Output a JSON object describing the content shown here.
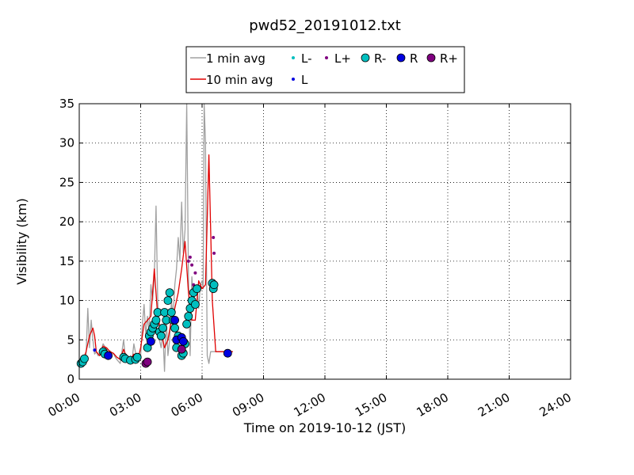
{
  "chart_data": {
    "type": "line",
    "title": "pwd52_20191012.txt",
    "xlabel": "Time on 2019-10-12 (JST)",
    "ylabel": "Visibility (km)",
    "xlim": [
      "00:00",
      "24:00"
    ],
    "ylim": [
      0,
      35
    ],
    "grid": true,
    "legend_placement": "top",
    "x_ticks": [
      "00:00",
      "03:00",
      "06:00",
      "09:00",
      "12:00",
      "15:00",
      "18:00",
      "21:00",
      "24:00"
    ],
    "y_ticks": [
      "0",
      "5",
      "10",
      "15",
      "20",
      "25",
      "30",
      "35"
    ],
    "legend": {
      "one_min": "1 min avg",
      "ten_min": "10 min avg",
      "L_minus": "L-",
      "L": "L",
      "L_plus": "L+",
      "R_minus": "R-",
      "R": "R",
      "R_plus": "R+"
    },
    "colors": {
      "one_min": "#a0a0a0",
      "ten_min": "#e00000",
      "L_minus": "#00bfbf",
      "L": "#0000e0",
      "L_plus": "#800080",
      "R_minus": "#00bfbf",
      "R": "#0000e0",
      "R_plus": "#800080"
    },
    "series": [
      {
        "name": "1 min avg",
        "x": [
          "00:00",
          "00:10",
          "00:20",
          "00:25",
          "00:30",
          "00:35",
          "00:40",
          "00:45",
          "00:50",
          "00:55",
          "01:00",
          "01:05",
          "01:10",
          "01:20",
          "01:30",
          "01:40",
          "01:50",
          "02:00",
          "02:10",
          "02:15",
          "02:20",
          "02:25",
          "02:30",
          "02:35",
          "02:40",
          "02:50",
          "03:00",
          "03:05",
          "03:10",
          "03:15",
          "03:20",
          "03:25",
          "03:30",
          "03:35",
          "03:40",
          "03:45",
          "03:50",
          "03:55",
          "04:00",
          "04:05",
          "04:10",
          "04:15",
          "04:20",
          "04:25",
          "04:30",
          "04:35",
          "04:40",
          "04:45",
          "04:50",
          "04:55",
          "05:00",
          "05:05",
          "05:10",
          "05:15",
          "05:20",
          "05:25",
          "05:30",
          "05:35",
          "05:40",
          "05:45",
          "05:50",
          "05:55",
          "06:00",
          "06:03",
          "06:06",
          "06:10",
          "06:15",
          "06:20",
          "06:25",
          "06:30",
          "06:35",
          "06:40",
          "06:45",
          "06:50",
          "06:55",
          "07:00",
          "07:05",
          "07:10",
          "07:15",
          "07:20",
          "07:25",
          "07:30"
        ],
        "values": [
          2.0,
          2.2,
          3.0,
          9.0,
          4.0,
          7.5,
          5.0,
          3.2,
          3.5,
          3.0,
          3.0,
          3.8,
          4.5,
          3.8,
          3.6,
          3.2,
          2.5,
          2.0,
          5.0,
          2.8,
          2.5,
          2.4,
          3.0,
          2.5,
          4.5,
          2.2,
          3.0,
          7.0,
          9.5,
          5.5,
          8.0,
          6.0,
          12.0,
          10.0,
          13.0,
          22.0,
          10.0,
          5.0,
          4.0,
          6.0,
          1.0,
          8.0,
          3.0,
          5.0,
          10.0,
          8.0,
          12.0,
          14.0,
          18.0,
          15.0,
          22.5,
          16.0,
          19.0,
          35.0,
          13.0,
          3.0,
          13.0,
          10.0,
          11.0,
          12.0,
          9.0,
          12.0,
          12.5,
          11.5,
          35.0,
          30.0,
          3.0,
          2.0,
          3.5,
          3.5,
          3.5,
          3.5,
          3.5,
          3.5,
          3.5,
          3.5,
          3.5,
          3.5,
          3.5,
          3.5,
          3.5,
          3.5
        ]
      },
      {
        "name": "10 min avg",
        "x": [
          "00:00",
          "00:10",
          "00:20",
          "00:30",
          "00:40",
          "00:45",
          "00:50",
          "01:00",
          "01:10",
          "01:20",
          "01:30",
          "01:40",
          "01:50",
          "02:00",
          "02:10",
          "02:20",
          "02:30",
          "02:40",
          "02:50",
          "03:00",
          "03:10",
          "03:20",
          "03:30",
          "03:40",
          "03:50",
          "04:00",
          "04:10",
          "04:20",
          "04:30",
          "04:40",
          "04:50",
          "05:00",
          "05:10",
          "05:20",
          "05:30",
          "05:40",
          "05:50",
          "06:00",
          "06:10",
          "06:20",
          "06:30",
          "06:40",
          "06:50",
          "07:00",
          "07:05",
          "07:10",
          "07:20",
          "07:30"
        ],
        "values": [
          2.0,
          2.3,
          3.5,
          5.5,
          6.5,
          5.5,
          3.5,
          3.0,
          4.2,
          4.0,
          3.5,
          3.3,
          2.8,
          2.5,
          3.8,
          2.6,
          2.5,
          3.2,
          2.2,
          4.0,
          7.0,
          7.5,
          8.0,
          14.0,
          8.0,
          6.0,
          4.0,
          5.0,
          7.5,
          9.0,
          11.0,
          14.0,
          17.5,
          11.0,
          7.5,
          7.5,
          12.5,
          11.5,
          12.0,
          28.5,
          10.0,
          3.5,
          3.5,
          3.5,
          3.5,
          3.5,
          3.5,
          3.5
        ]
      }
    ],
    "scatter": {
      "L-": [],
      "L": [
        [
          "00:45",
          3.7
        ]
      ],
      "L+": [
        [
          "05:20",
          15.0
        ],
        [
          "05:25",
          15.5
        ],
        [
          "05:30",
          14.5
        ],
        [
          "05:35",
          12.0
        ],
        [
          "05:40",
          13.5
        ],
        [
          "06:33",
          18.0
        ],
        [
          "06:35",
          16.0
        ]
      ],
      "R-": [
        [
          "00:05",
          2.0
        ],
        [
          "00:10",
          2.2
        ],
        [
          "00:15",
          2.6
        ],
        [
          "01:10",
          3.5
        ],
        [
          "01:15",
          3.2
        ],
        [
          "02:10",
          2.8
        ],
        [
          "02:15",
          2.6
        ],
        [
          "02:30",
          2.4
        ],
        [
          "02:45",
          2.5
        ],
        [
          "02:50",
          2.8
        ],
        [
          "03:20",
          4.0
        ],
        [
          "03:25",
          5.5
        ],
        [
          "03:30",
          6.0
        ],
        [
          "03:35",
          6.5
        ],
        [
          "03:40",
          7.0
        ],
        [
          "03:45",
          7.5
        ],
        [
          "03:50",
          8.5
        ],
        [
          "03:55",
          6.0
        ],
        [
          "04:00",
          5.5
        ],
        [
          "04:05",
          6.5
        ],
        [
          "04:10",
          8.5
        ],
        [
          "04:15",
          7.5
        ],
        [
          "04:20",
          10.0
        ],
        [
          "04:25",
          11.0
        ],
        [
          "04:30",
          8.5
        ],
        [
          "04:35",
          7.5
        ],
        [
          "04:40",
          6.5
        ],
        [
          "04:45",
          4.0
        ],
        [
          "04:50",
          5.5
        ],
        [
          "05:00",
          3.0
        ],
        [
          "05:05",
          3.3
        ],
        [
          "05:10",
          4.5
        ],
        [
          "05:15",
          7.0
        ],
        [
          "05:20",
          8.0
        ],
        [
          "05:25",
          9.0
        ],
        [
          "05:30",
          10.0
        ],
        [
          "05:35",
          11.0
        ],
        [
          "05:40",
          9.5
        ],
        [
          "05:45",
          11.5
        ],
        [
          "06:30",
          12.2
        ],
        [
          "06:33",
          11.5
        ],
        [
          "06:35",
          12.0
        ]
      ],
      "R": [
        [
          "01:25",
          3.0
        ],
        [
          "03:30",
          4.8
        ],
        [
          "04:40",
          7.5
        ],
        [
          "04:45",
          5.0
        ],
        [
          "05:00",
          5.3
        ],
        [
          "05:05",
          4.8
        ],
        [
          "07:15",
          3.3
        ]
      ],
      "R+": [
        [
          "03:15",
          2.0
        ],
        [
          "03:20",
          2.2
        ],
        [
          "05:00",
          3.8
        ]
      ]
    }
  }
}
